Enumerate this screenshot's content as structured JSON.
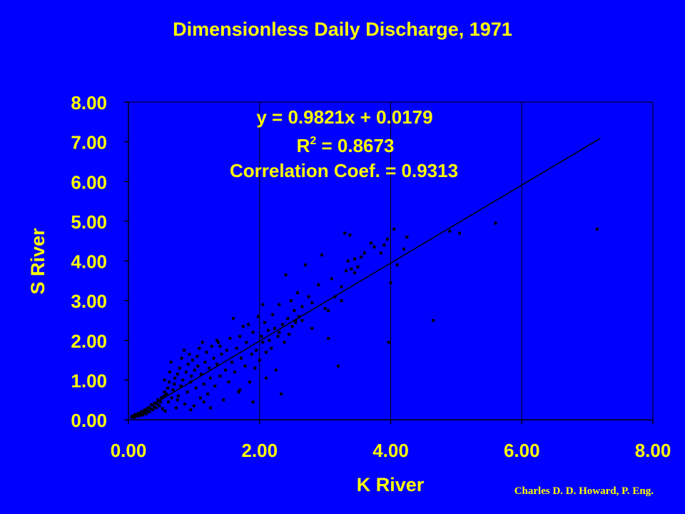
{
  "title": "Dimensionless Daily Discharge, 1971",
  "credit": "Charles D. D. Howard, P. Eng.",
  "colors": {
    "background": "#0000FF",
    "text": "#FFFF00",
    "marks": "#000000"
  },
  "annotation": {
    "equation": "y = 0.9821x + 0.0179",
    "r2_label": "R",
    "r2_sup": "2",
    "r2_value": " = 0.8673",
    "correlation": "Correlation Coef. = 0.9313"
  },
  "chart_data": {
    "type": "scatter",
    "title": "Dimensionless Daily Discharge, 1971",
    "xlabel": "K River",
    "ylabel": "S River",
    "xlim": [
      0,
      8
    ],
    "ylim": [
      0,
      8
    ],
    "x_ticks": [
      "0.00",
      "2.00",
      "4.00",
      "6.00",
      "8.00"
    ],
    "y_ticks": [
      "0.00",
      "1.00",
      "2.00",
      "3.00",
      "4.00",
      "5.00",
      "6.00",
      "7.00",
      "8.00"
    ],
    "grid": {
      "vertical": true,
      "horizontal": false
    },
    "trendline": {
      "slope": 0.9821,
      "intercept": 0.0179,
      "x_range": [
        0.05,
        7.2
      ]
    },
    "points": [
      [
        0.05,
        0.07
      ],
      [
        0.07,
        0.1
      ],
      [
        0.09,
        0.06
      ],
      [
        0.1,
        0.13
      ],
      [
        0.12,
        0.09
      ],
      [
        0.14,
        0.12
      ],
      [
        0.15,
        0.16
      ],
      [
        0.17,
        0.1
      ],
      [
        0.19,
        0.14
      ],
      [
        0.2,
        0.2
      ],
      [
        0.22,
        0.12
      ],
      [
        0.24,
        0.18
      ],
      [
        0.25,
        0.25
      ],
      [
        0.27,
        0.15
      ],
      [
        0.29,
        0.22
      ],
      [
        0.3,
        0.3
      ],
      [
        0.32,
        0.2
      ],
      [
        0.34,
        0.28
      ],
      [
        0.35,
        0.38
      ],
      [
        0.37,
        0.25
      ],
      [
        0.39,
        0.33
      ],
      [
        0.4,
        0.42
      ],
      [
        0.42,
        0.3
      ],
      [
        0.44,
        0.4
      ],
      [
        0.45,
        0.5
      ],
      [
        0.47,
        0.35
      ],
      [
        0.49,
        0.45
      ],
      [
        0.5,
        0.55
      ],
      [
        0.52,
        0.28
      ],
      [
        0.54,
        0.6
      ],
      [
        0.55,
        0.7
      ],
      [
        0.56,
        0.22
      ],
      [
        0.58,
        0.65
      ],
      [
        0.6,
        0.8
      ],
      [
        0.61,
        0.45
      ],
      [
        0.62,
        0.95
      ],
      [
        0.63,
        1.2
      ],
      [
        0.65,
        1.45
      ],
      [
        0.66,
        0.55
      ],
      [
        0.68,
        0.75
      ],
      [
        0.7,
        0.9
      ],
      [
        0.71,
        1.05
      ],
      [
        0.73,
        0.3
      ],
      [
        0.75,
        1.15
      ],
      [
        0.76,
        0.6
      ],
      [
        0.78,
        1.3
      ],
      [
        0.8,
        0.85
      ],
      [
        0.81,
        1.55
      ],
      [
        0.83,
        1.0
      ],
      [
        0.85,
        1.75
      ],
      [
        0.86,
        0.4
      ],
      [
        0.88,
        1.2
      ],
      [
        0.9,
        0.7
      ],
      [
        0.91,
        1.4
      ],
      [
        0.93,
        1.65
      ],
      [
        0.95,
        0.95
      ],
      [
        0.96,
        1.1
      ],
      [
        0.98,
        1.5
      ],
      [
        1.0,
        0.35
      ],
      [
        1.01,
        1.25
      ],
      [
        1.03,
        0.8
      ],
      [
        1.05,
        1.6
      ],
      [
        1.06,
        1.35
      ],
      [
        1.08,
        1.8
      ],
      [
        1.1,
        0.55
      ],
      [
        1.11,
        1.15
      ],
      [
        1.13,
        1.95
      ],
      [
        1.15,
        0.9
      ],
      [
        1.17,
        1.45
      ],
      [
        1.19,
        1.7
      ],
      [
        1.21,
        0.65
      ],
      [
        1.23,
        1.3
      ],
      [
        1.25,
        1.05
      ],
      [
        1.27,
        1.85
      ],
      [
        1.3,
        1.55
      ],
      [
        1.32,
        0.85
      ],
      [
        1.35,
        1.4
      ],
      [
        1.37,
        1.95
      ],
      [
        1.4,
        1.1
      ],
      [
        1.42,
        1.65
      ],
      [
        1.45,
        0.5
      ],
      [
        1.48,
        1.25
      ],
      [
        1.5,
        1.75
      ],
      [
        1.53,
        0.95
      ],
      [
        1.55,
        2.05
      ],
      [
        1.58,
        1.45
      ],
      [
        1.6,
        2.55
      ],
      [
        1.62,
        1.2
      ],
      [
        1.65,
        1.8
      ],
      [
        1.68,
        0.7
      ],
      [
        1.7,
        2.1
      ],
      [
        1.72,
        1.55
      ],
      [
        1.75,
        2.35
      ],
      [
        1.78,
        1.35
      ],
      [
        1.8,
        1.95
      ],
      [
        1.83,
        2.4
      ],
      [
        1.85,
        0.95
      ],
      [
        1.88,
        1.65
      ],
      [
        1.9,
        2.2
      ],
      [
        1.93,
        1.3
      ],
      [
        1.95,
        1.75
      ],
      [
        1.98,
        2.6
      ],
      [
        2.0,
        1.5
      ],
      [
        2.03,
        2.1
      ],
      [
        2.05,
        1.95
      ],
      [
        2.08,
        2.45
      ],
      [
        2.1,
        1.7
      ],
      [
        2.13,
        2.25
      ],
      [
        2.15,
        2.0
      ],
      [
        2.18,
        1.8
      ],
      [
        2.2,
        2.65
      ],
      [
        2.23,
        2.3
      ],
      [
        2.25,
        1.25
      ],
      [
        2.28,
        2.1
      ],
      [
        2.3,
        2.9
      ],
      [
        2.33,
        0.65
      ],
      [
        2.35,
        2.4
      ],
      [
        2.38,
        1.95
      ],
      [
        2.4,
        3.65
      ],
      [
        2.43,
        2.55
      ],
      [
        2.45,
        2.15
      ],
      [
        2.48,
        3.0
      ],
      [
        2.5,
        2.35
      ],
      [
        2.53,
        2.75
      ],
      [
        2.55,
        2.45
      ],
      [
        2.58,
        3.2
      ],
      [
        2.6,
        2.6
      ],
      [
        2.65,
        2.85
      ],
      [
        2.7,
        3.9
      ],
      [
        2.75,
        3.1
      ],
      [
        2.8,
        2.95
      ],
      [
        2.9,
        3.4
      ],
      [
        2.95,
        4.15
      ],
      [
        3.0,
        2.8
      ],
      [
        3.05,
        2.05
      ],
      [
        3.1,
        3.55
      ],
      [
        3.15,
        3.1
      ],
      [
        3.2,
        1.35
      ],
      [
        3.25,
        3.35
      ],
      [
        3.3,
        4.7
      ],
      [
        3.32,
        3.75
      ],
      [
        3.35,
        4.0
      ],
      [
        3.38,
        4.65
      ],
      [
        3.4,
        3.8
      ],
      [
        3.45,
        4.05
      ],
      [
        3.5,
        3.85
      ],
      [
        3.55,
        4.1
      ],
      [
        3.6,
        4.2
      ],
      [
        3.7,
        4.45
      ],
      [
        3.75,
        4.35
      ],
      [
        3.85,
        4.2
      ],
      [
        3.9,
        4.4
      ],
      [
        3.95,
        4.55
      ],
      [
        3.97,
        1.95
      ],
      [
        4.0,
        3.45
      ],
      [
        4.05,
        4.8
      ],
      [
        4.1,
        3.9
      ],
      [
        4.2,
        4.3
      ],
      [
        4.25,
        4.6
      ],
      [
        4.65,
        2.5
      ],
      [
        4.9,
        4.75
      ],
      [
        5.05,
        4.7
      ],
      [
        5.6,
        4.95
      ],
      [
        7.15,
        4.8
      ],
      [
        1.35,
        2.0
      ],
      [
        1.4,
        1.85
      ],
      [
        0.55,
        1.0
      ],
      [
        0.75,
        0.5
      ],
      [
        0.95,
        0.25
      ],
      [
        1.15,
        0.45
      ],
      [
        1.25,
        0.3
      ],
      [
        1.7,
        0.75
      ],
      [
        1.9,
        0.45
      ],
      [
        2.1,
        1.05
      ],
      [
        2.05,
        2.9
      ],
      [
        2.3,
        2.2
      ],
      [
        2.55,
        2.5
      ],
      [
        2.65,
        2.5
      ],
      [
        2.8,
        2.3
      ],
      [
        3.05,
        2.75
      ],
      [
        3.25,
        3.0
      ],
      [
        3.45,
        3.7
      ]
    ]
  }
}
